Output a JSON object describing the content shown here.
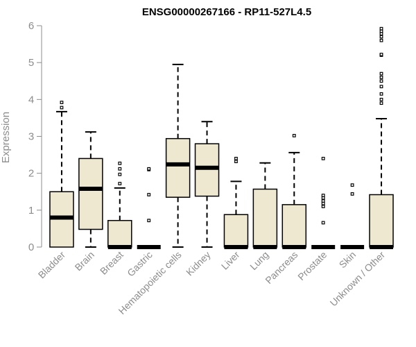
{
  "chart_data": {
    "type": "boxplot",
    "title": "ENSG00000267166 - RP11-527L4.5",
    "xlabel": "",
    "ylabel": "Expression",
    "ylim": [
      0,
      6
    ],
    "yticks": [
      0,
      1,
      2,
      3,
      4,
      5,
      6
    ],
    "grid": false,
    "box_fill": "#efe8d0",
    "box_stroke": "#000000",
    "axis_color": "#8c8c8c",
    "categories": [
      "Bladder",
      "Brain",
      "Breast",
      "Gastric",
      "Hematopoietic cells",
      "Kidney",
      "Liver",
      "Lung",
      "Pancreas",
      "Prostate",
      "Skin",
      "Unknown / Other"
    ],
    "boxes": [
      {
        "q1": 0.0,
        "median": 0.8,
        "q3": 1.5,
        "whisker_low": 0.0,
        "whisker_high": 3.67,
        "outliers": [
          3.78,
          3.92
        ]
      },
      {
        "q1": 0.48,
        "median": 1.58,
        "q3": 2.4,
        "whisker_low": 0.0,
        "whisker_high": 3.12,
        "outliers": []
      },
      {
        "q1": 0.0,
        "median": 0.0,
        "q3": 0.72,
        "whisker_low": 0.0,
        "whisker_high": 1.6,
        "outliers": [
          1.72,
          1.97,
          2.12,
          2.27
        ]
      },
      {
        "q1": 0.0,
        "median": 0.0,
        "q3": 0.0,
        "whisker_low": 0.0,
        "whisker_high": 0.0,
        "outliers": [
          0.72,
          1.42,
          2.1,
          2.12
        ]
      },
      {
        "q1": 1.35,
        "median": 2.24,
        "q3": 2.94,
        "whisker_low": 0.0,
        "whisker_high": 4.95,
        "outliers": []
      },
      {
        "q1": 1.38,
        "median": 2.15,
        "q3": 2.8,
        "whisker_low": 0.0,
        "whisker_high": 3.4,
        "outliers": []
      },
      {
        "q1": 0.0,
        "median": 0.0,
        "q3": 0.88,
        "whisker_low": 0.0,
        "whisker_high": 1.78,
        "outliers": [
          2.32,
          2.4
        ]
      },
      {
        "q1": 0.0,
        "median": 0.0,
        "q3": 1.57,
        "whisker_low": 0.0,
        "whisker_high": 2.28,
        "outliers": []
      },
      {
        "q1": 0.0,
        "median": 0.0,
        "q3": 1.15,
        "whisker_low": 0.0,
        "whisker_high": 2.56,
        "outliers": [
          3.02
        ]
      },
      {
        "q1": 0.0,
        "median": 0.0,
        "q3": 0.0,
        "whisker_low": 0.0,
        "whisker_high": 0.0,
        "outliers": [
          0.66,
          1.1,
          1.18,
          1.25,
          1.33,
          1.4,
          2.4
        ]
      },
      {
        "q1": 0.0,
        "median": 0.0,
        "q3": 0.0,
        "whisker_low": 0.0,
        "whisker_high": 0.0,
        "outliers": [
          1.44,
          1.68
        ]
      },
      {
        "q1": 0.0,
        "median": 0.0,
        "q3": 1.42,
        "whisker_low": 0.0,
        "whisker_high": 3.48,
        "outliers": [
          3.9,
          4.0,
          4.15,
          4.35,
          4.5,
          4.6,
          4.7,
          5.2,
          5.22,
          5.6,
          5.7,
          5.78,
          5.85,
          5.92
        ]
      }
    ]
  }
}
